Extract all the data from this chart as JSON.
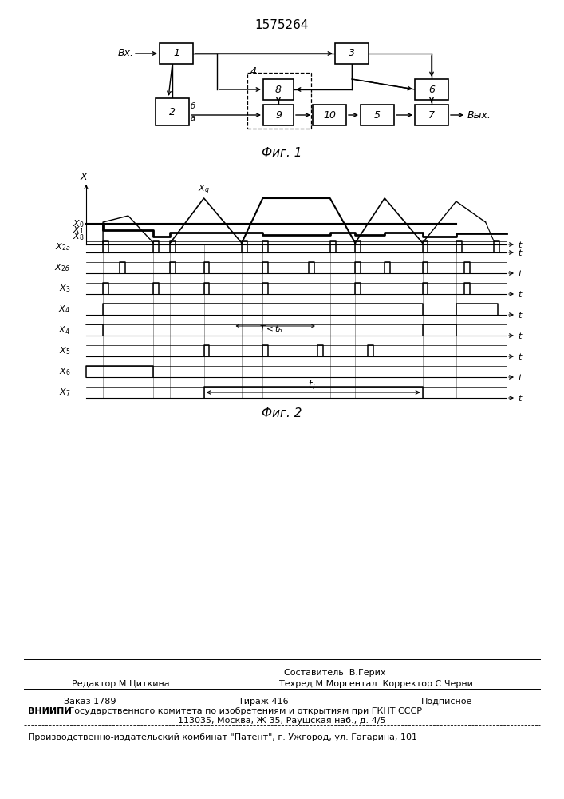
{
  "title": "1575264",
  "fig1_caption": "Фиг. 1",
  "fig2_caption": "Фиг. 2",
  "sig_labels": [
    "X",
    "X_{2a}",
    "X_{2б}",
    "X_3",
    "X_4",
    "X_4bar",
    "X_5",
    "X_6",
    "X_7"
  ],
  "footer": {
    "line1_center": "Составитель  В.Герих",
    "line2_left": "Редактор М.Циткина",
    "line2_center": "Техред М.Моргентал  Корректор С.Черни",
    "line3_left": "Заказ 1789",
    "line3_center": "Тираж 416",
    "line3_right": "Подписное",
    "line4_bold": "ВНИИПИ",
    "line4_rest": " Государственного комитета по изобретениям и открытиям при ГКНТ СССР",
    "line5": "113035, Москва, Ж-35, Раушская наб., д. 4/5",
    "line6": "Производственно-издательский комбинат \"Патент\", г. Ужгород, ул. Гагарина, 101"
  }
}
